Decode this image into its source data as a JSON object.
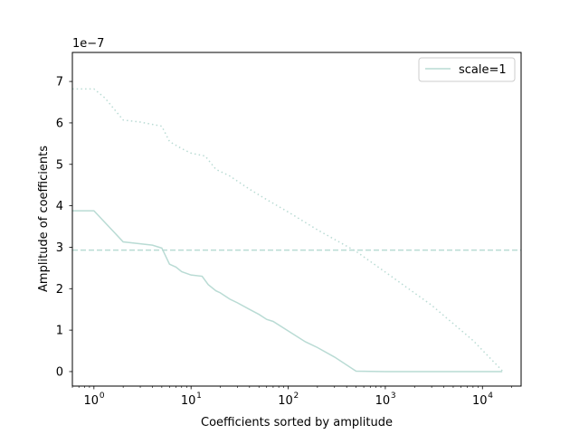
{
  "chart_data": {
    "type": "line",
    "title": "",
    "xlabel": "Coefficients sorted by amplitude",
    "ylabel": "Amplitude of coefficients",
    "xscale": "log",
    "xlim": [
      0.6,
      25000
    ],
    "ylim": [
      -0.35,
      7.7
    ],
    "y_multiplier_label": "1e−7",
    "x_ticks": [
      {
        "value": 1,
        "base": "10",
        "exp": "0"
      },
      {
        "value": 10,
        "base": "10",
        "exp": "1"
      },
      {
        "value": 100,
        "base": "10",
        "exp": "2"
      },
      {
        "value": 1000,
        "base": "10",
        "exp": "3"
      },
      {
        "value": 10000,
        "base": "10",
        "exp": "4"
      }
    ],
    "y_ticks": [
      {
        "value": 0,
        "label": "0"
      },
      {
        "value": 1,
        "label": "1"
      },
      {
        "value": 2,
        "label": "2"
      },
      {
        "value": 3,
        "label": "3"
      },
      {
        "value": 4,
        "label": "4"
      },
      {
        "value": 5,
        "label": "5"
      },
      {
        "value": 6,
        "label": "6"
      },
      {
        "value": 7,
        "label": "7"
      }
    ],
    "grid": false,
    "legend": {
      "placement": "top-right",
      "entries": [
        "scale=1"
      ]
    },
    "color": "#b9dbd4",
    "series": [
      {
        "name": "scale=1",
        "style": "solid",
        "x": [
          0.6,
          1,
          2,
          4,
          5,
          6,
          7,
          8,
          10,
          13,
          15,
          18,
          20,
          25,
          30,
          40,
          50,
          60,
          70,
          100,
          150,
          200,
          300,
          500,
          1000,
          5000,
          16000
        ],
        "y": [
          3.88,
          3.88,
          3.13,
          3.05,
          2.98,
          2.59,
          2.52,
          2.41,
          2.33,
          2.3,
          2.1,
          1.95,
          1.9,
          1.75,
          1.66,
          1.5,
          1.38,
          1.26,
          1.21,
          0.98,
          0.72,
          0.58,
          0.35,
          0.01,
          0.0,
          0.0,
          0.0
        ]
      },
      {
        "style": "dotted",
        "x": [
          0.6,
          1,
          1.3,
          2,
          3,
          5,
          6,
          8,
          10,
          14,
          18,
          25,
          40,
          60,
          100,
          200,
          500,
          1000,
          3000,
          8000,
          16000
        ],
        "y": [
          6.82,
          6.82,
          6.6,
          6.07,
          6.02,
          5.92,
          5.55,
          5.38,
          5.27,
          5.2,
          4.88,
          4.72,
          4.4,
          4.15,
          3.85,
          3.42,
          2.9,
          2.4,
          1.6,
          0.75,
          0.02
        ]
      },
      {
        "style": "dashed",
        "x": [
          0.6,
          25000
        ],
        "y": [
          2.93,
          2.93
        ]
      }
    ]
  }
}
